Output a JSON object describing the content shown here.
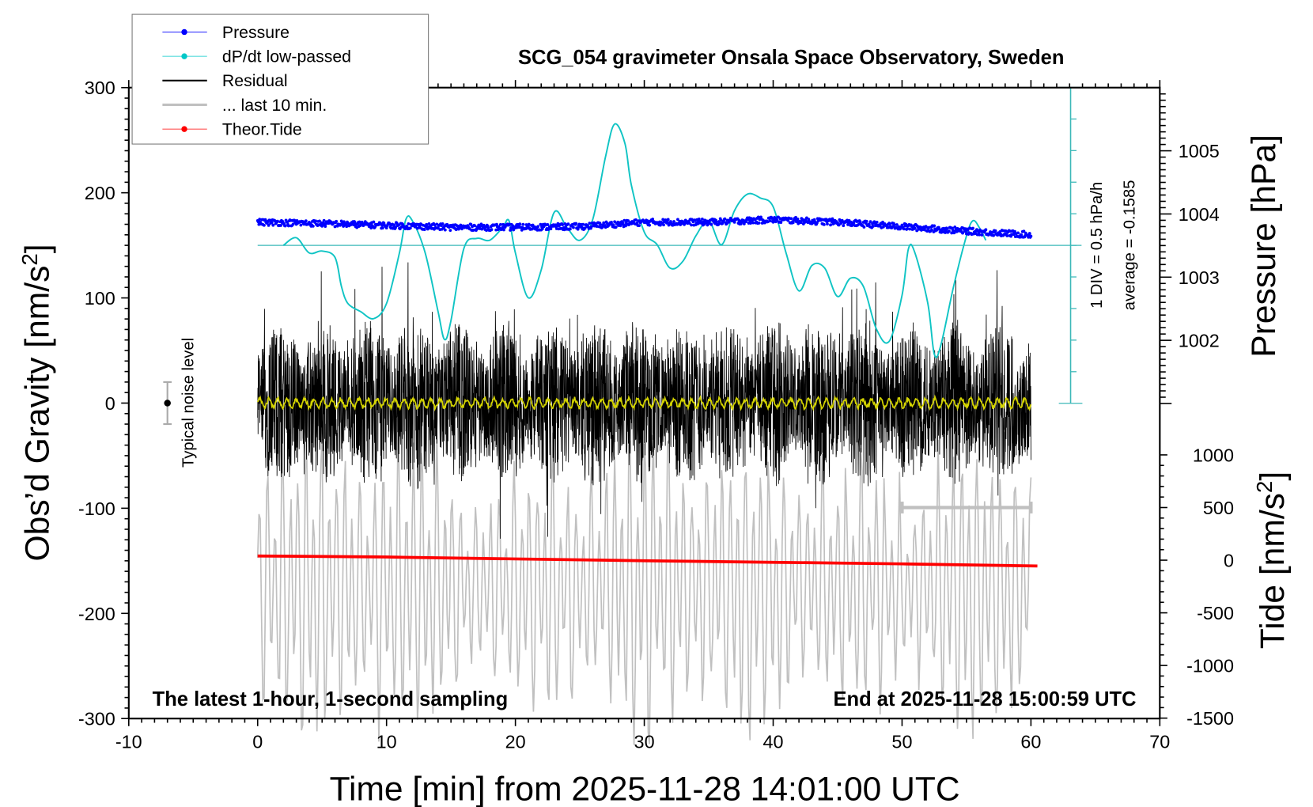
{
  "chart_data": {
    "type": "line",
    "title": "SCG_054 gravimeter Onsala Space Observatory, Sweden",
    "xlabel": "Time [min] from 2025-11-28 14:01:00 UTC",
    "ylabel_left": "Obs’d Gravity [nm/s",
    "ylabel_left_sup": "2",
    "ylabel_left_end": "]",
    "ylabel_right_top": "Pressure [hPa]",
    "ylabel_right_bottom": "Tide [nm/s",
    "ylabel_right_bottom_sup": "2",
    "ylabel_right_bottom_end": "]",
    "xlim": [
      -10,
      70
    ],
    "ylim_left": [
      -300,
      300
    ],
    "ylim_pressure": [
      1001.0,
      1006.0
    ],
    "ylim_tide": [
      -1500,
      1000
    ],
    "x_ticks": [
      "-10",
      "0",
      "10",
      "20",
      "30",
      "40",
      "50",
      "60",
      "70"
    ],
    "y_left_ticks": [
      "300",
      "200",
      "100",
      "0",
      "-100",
      "-200",
      "-300"
    ],
    "y_pressure_ticks": [
      "1005",
      "1004",
      "1003",
      "1002"
    ],
    "y_tide_ticks": [
      "1000",
      "500",
      "0",
      "-500",
      "-1000",
      "-1500"
    ],
    "grid": false,
    "legend_position": "top-left",
    "legend": [
      {
        "label": "Pressure",
        "color": "#0000ff",
        "style": "line-dot"
      },
      {
        "label": "dP/dt low-passed",
        "color": "#00c8c8",
        "style": "line-dot"
      },
      {
        "label": "Residual",
        "color": "#000000",
        "style": "line"
      },
      {
        "label": "... last 10 min.",
        "color": "#c0c0c0",
        "style": "thick-line"
      },
      {
        "label": "Theor.Tide",
        "color": "#ff0000",
        "style": "line-dot"
      }
    ],
    "annotations": {
      "bottom_left": "The latest 1-hour, 1-second sampling",
      "bottom_right": "End at 2025-11-28 15:00:59 UTC",
      "noise_label": "Typical noise level",
      "div_label": "1 DIV = 0.5 hPa/h",
      "average_label": "average = -0.1585"
    },
    "noise_level": {
      "x": -7,
      "y": 0,
      "err": 20
    },
    "last10_range_min": [
      50,
      60
    ],
    "pressure_hPa": {
      "x": [
        0,
        5,
        10,
        15,
        20,
        25,
        30,
        35,
        40,
        45,
        50,
        55,
        60
      ],
      "y": [
        1003.87,
        1003.85,
        1003.82,
        1003.79,
        1003.79,
        1003.8,
        1003.87,
        1003.87,
        1003.91,
        1003.87,
        1003.8,
        1003.73,
        1003.67
      ]
    },
    "dpdt_hPa_per_h": {
      "zero_level_gravity": 150,
      "x": [
        2,
        3,
        4,
        5,
        6,
        6.5,
        7,
        8,
        9,
        10,
        11,
        11.5,
        12,
        13,
        14,
        14.5,
        15,
        16,
        17,
        18,
        19,
        19.5,
        20,
        21,
        22,
        23,
        24,
        25,
        26,
        27,
        27.7,
        28.5,
        29,
        30,
        31,
        32,
        33,
        34,
        35,
        36,
        37,
        38,
        39,
        40,
        41,
        42,
        43,
        44,
        45,
        46,
        47,
        48,
        49,
        50,
        50.5,
        51,
        52,
        52.5,
        53,
        54,
        55,
        55.5,
        56,
        56.5
      ],
      "y": [
        0,
        0.12,
        -0.12,
        -0.09,
        -0.19,
        -0.65,
        -0.92,
        -1.05,
        -1.16,
        -0.92,
        -0.12,
        0.41,
        0.39,
        -0.12,
        -1.05,
        -1.49,
        -1.19,
        -0.05,
        0.11,
        0.08,
        0.28,
        0.39,
        -0.12,
        -0.83,
        -0.39,
        0.52,
        0.28,
        0.08,
        0.41,
        1.41,
        1.92,
        1.61,
        0.95,
        0.21,
        0.01,
        -0.36,
        -0.25,
        0.15,
        0.39,
        0.01,
        0.55,
        0.81,
        0.75,
        0.61,
        -0.12,
        -0.72,
        -0.32,
        -0.36,
        -0.81,
        -0.52,
        -0.65,
        -1.32,
        -1.52,
        -0.79,
        -0.05,
        -0.12,
        -0.92,
        -1.72,
        -1.59,
        -0.65,
        0.15,
        0.39,
        0.28,
        0.08
      ]
    },
    "residual_nm_s2": {
      "x_range": [
        0,
        60
      ],
      "mean": 0,
      "typical_amplitude": 60,
      "max_amplitude": 140
    },
    "residual_smoothed_color": "#d4d400",
    "last10_nm_s2": {
      "x_range": [
        0,
        60
      ],
      "center": -175,
      "typical_amplitude": 80
    },
    "theor_tide_nm_s2": {
      "x": [
        0,
        10,
        20,
        30,
        40,
        50,
        60.5
      ],
      "y": [
        40,
        30,
        12,
        -5,
        -20,
        -35,
        -55
      ]
    }
  }
}
